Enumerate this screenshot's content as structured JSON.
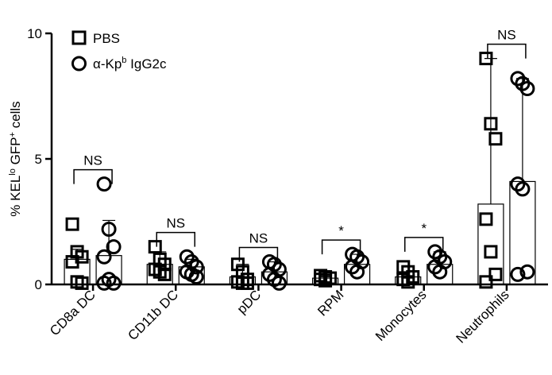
{
  "chart_data": {
    "type": "bar",
    "ylabel_parts": [
      "% KEL",
      "lo",
      " GFP",
      "+",
      " cells"
    ],
    "categories": [
      "CD8a DC",
      "CD11b DC",
      "pDC",
      "RPM",
      "Monocytes",
      "Neutrophils"
    ],
    "ylim": [
      0,
      10
    ],
    "yticks": [
      0,
      5,
      10
    ],
    "grid": false,
    "significance": [
      "NS",
      "NS",
      "NS",
      "*",
      "*",
      "NS"
    ],
    "series": [
      {
        "name": "PBS",
        "marker": "square",
        "color": "#000000",
        "values": [
          1.0,
          0.8,
          0.3,
          0.25,
          0.3,
          3.2
        ],
        "errors": [
          0.4,
          0.5,
          0.5,
          0.05,
          0.4,
          5.8
        ],
        "points": [
          [
            2.4,
            1.3,
            1.1,
            0.9,
            0.1,
            0.05
          ],
          [
            1.5,
            1.0,
            0.8,
            0.6,
            0.5,
            0.4
          ],
          [
            0.8,
            0.5,
            0.2,
            0.1,
            0.05,
            0.05
          ],
          [
            0.35,
            0.3,
            0.25,
            0.2,
            0.15
          ],
          [
            0.7,
            0.5,
            0.3,
            0.2,
            0.1
          ],
          [
            9.0,
            6.4,
            5.8,
            2.6,
            1.3,
            0.4,
            0.1
          ]
        ]
      },
      {
        "name": "α-Kp",
        "name_sup": "b",
        "name_suffix": " IgG2c",
        "marker": "circle",
        "color": "#000000",
        "values": [
          1.15,
          0.7,
          0.5,
          0.8,
          0.8,
          4.1
        ],
        "errors": [
          1.4,
          0.3,
          0.4,
          0.4,
          0.5,
          4.1
        ],
        "points": [
          [
            4.0,
            2.2,
            1.5,
            1.1,
            0.2,
            0.05,
            0.05
          ],
          [
            1.1,
            0.9,
            0.7,
            0.5,
            0.4,
            0.3
          ],
          [
            0.9,
            0.8,
            0.6,
            0.4,
            0.2,
            0.05
          ],
          [
            1.2,
            1.1,
            0.9,
            0.7,
            0.5
          ],
          [
            1.3,
            1.1,
            0.9,
            0.7,
            0.5
          ],
          [
            8.2,
            8.0,
            7.8,
            4.0,
            3.8,
            0.5,
            0.4
          ]
        ]
      }
    ]
  }
}
